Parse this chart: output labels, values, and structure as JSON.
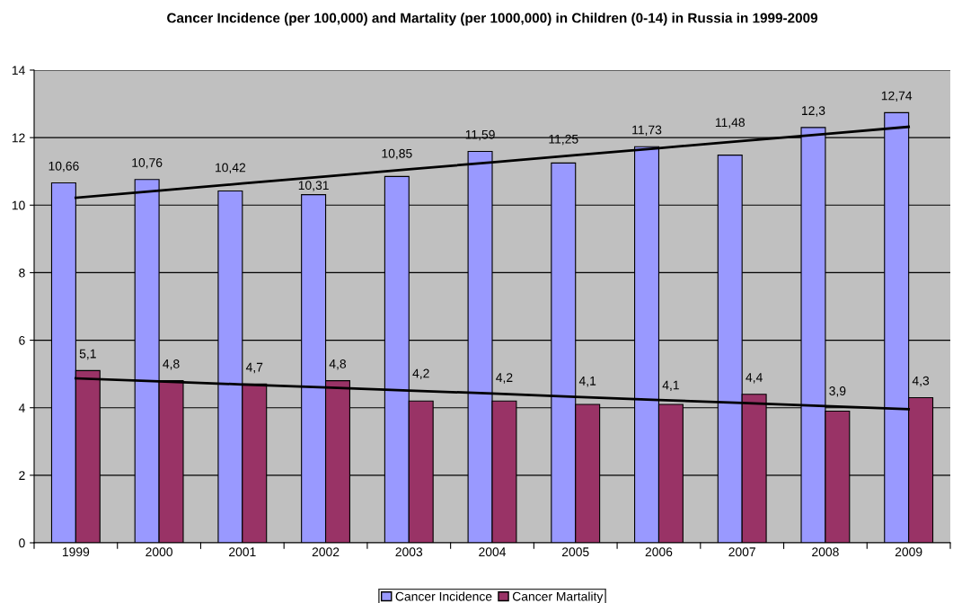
{
  "chart_data": {
    "type": "bar",
    "title": "Cancer Incidence (per 100,000) and Martality (per 1000,000) in Children (0-14) in Russia in 1999-2009",
    "categories": [
      "1999",
      "2000",
      "2001",
      "2002",
      "2003",
      "2004",
      "2005",
      "2006",
      "2007",
      "2008",
      "2009"
    ],
    "series": [
      {
        "name": "Cancer Incidence",
        "color": "#9999ff",
        "values": [
          10.66,
          10.76,
          10.42,
          10.31,
          10.85,
          11.59,
          11.25,
          11.73,
          11.48,
          12.3,
          12.74
        ],
        "value_labels": [
          "10,66",
          "10,76",
          "10,42",
          "10,31",
          "10,85",
          "11,59",
          "11,25",
          "11,73",
          "11,48",
          "12,3",
          "12,74"
        ]
      },
      {
        "name": "Cancer Martality",
        "color": "#993366",
        "values": [
          5.1,
          4.8,
          4.7,
          4.8,
          4.2,
          4.2,
          4.1,
          4.1,
          4.4,
          3.9,
          4.3
        ],
        "value_labels": [
          "5,1",
          "4,8",
          "4,7",
          "4,8",
          "4,2",
          "4,2",
          "4,1",
          "4,1",
          "4,4",
          "3,9",
          "4,3"
        ]
      },
      {
        "type": "line",
        "color": "#000000",
        "values": [
          10.22,
          10.43,
          10.64,
          10.85,
          11.06,
          11.27,
          11.48,
          11.69,
          11.9,
          12.11,
          12.32
        ]
      },
      {
        "type": "line",
        "color": "#000000",
        "values": [
          4.87,
          4.78,
          4.69,
          4.6,
          4.51,
          4.42,
          4.32,
          4.23,
          4.14,
          4.05,
          3.96
        ]
      }
    ],
    "ylim": [
      0,
      14
    ],
    "yticks": [
      0,
      2,
      4,
      6,
      8,
      10,
      12,
      14
    ],
    "grid": "y",
    "legend": "bottom"
  }
}
